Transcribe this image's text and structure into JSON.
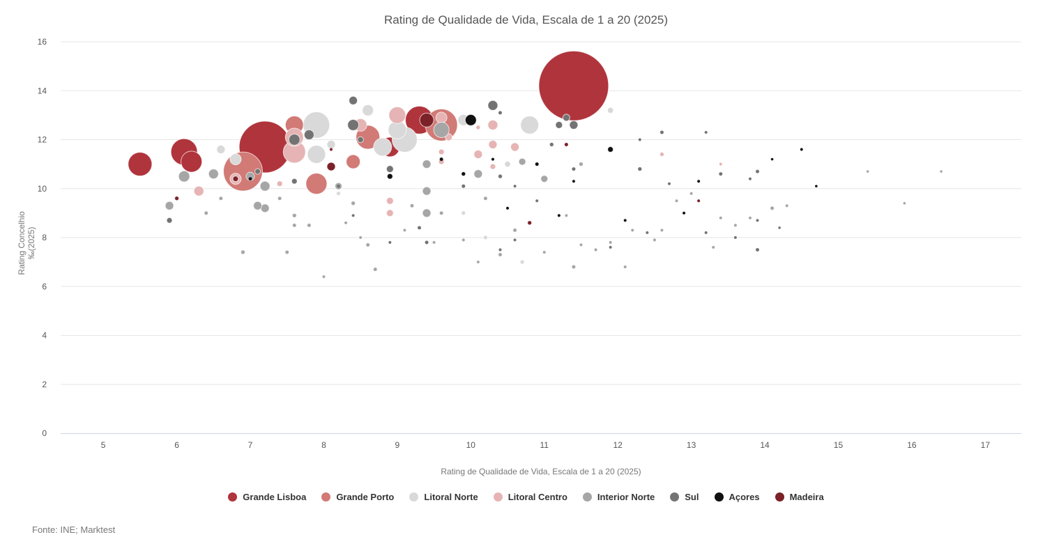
{
  "chart_data": {
    "type": "bubble",
    "title": "Rating de Qualidade de Vida, Escala de 1 a 20 (2025)",
    "xlabel": "Rating de Qualidade de Vida, Escala de 1 a 20 (2025)",
    "ylabel": "Rating Concelhio ‰(2025)",
    "xlim": [
      4.42,
      17.49
    ],
    "ylim": [
      0,
      16
    ],
    "xticks": [
      "5",
      "6",
      "7",
      "8",
      "9",
      "10",
      "11",
      "12",
      "13",
      "14",
      "15",
      "16",
      "17"
    ],
    "yticks": [
      "0",
      "2",
      "4",
      "6",
      "8",
      "10",
      "12",
      "14",
      "16"
    ],
    "grid": "horizontal",
    "legend_position": "bottom",
    "series": [
      {
        "name": "Grande Lisboa",
        "color": "#b0343c",
        "points": [
          [
            5.5,
            11.0,
            64
          ],
          [
            6.1,
            11.5,
            79
          ],
          [
            6.2,
            11.1,
            50
          ],
          [
            7.2,
            11.7,
            301
          ],
          [
            11.4,
            14.2,
            550
          ],
          [
            9.3,
            12.8,
            88
          ],
          [
            8.9,
            11.7,
            43
          ]
        ]
      },
      {
        "name": "Grande Porto",
        "color": "#d17a76",
        "points": [
          [
            6.9,
            10.7,
            172
          ],
          [
            7.6,
            12.6,
            37
          ],
          [
            7.9,
            10.2,
            50
          ],
          [
            8.6,
            12.1,
            64
          ],
          [
            8.4,
            11.1,
            22
          ],
          [
            9.6,
            12.6,
            116
          ]
        ]
      },
      {
        "name": "Litoral Norte",
        "color": "#d9d9d9",
        "points": [
          [
            7.9,
            12.6,
            79
          ],
          [
            9.1,
            12.0,
            71
          ],
          [
            9.0,
            12.4,
            37
          ],
          [
            8.8,
            11.7,
            37
          ],
          [
            10.8,
            12.6,
            37
          ],
          [
            8.6,
            13.2,
            14
          ],
          [
            7.9,
            11.4,
            37
          ],
          [
            6.8,
            11.2,
            14
          ],
          [
            6.6,
            11.6,
            8
          ],
          [
            8.2,
            9.8,
            2
          ],
          [
            9.9,
            9.0,
            2
          ],
          [
            10.5,
            11.0,
            4
          ],
          [
            11.9,
            13.2,
            4
          ],
          [
            10.2,
            8.0,
            2
          ],
          [
            10.7,
            7.0,
            2
          ],
          [
            9.9,
            12.8,
            14
          ],
          [
            7.2,
            10.1,
            8
          ],
          [
            8.1,
            11.8,
            8
          ]
        ]
      },
      {
        "name": "Litoral Centro",
        "color": "#e6b4b4",
        "points": [
          [
            7.6,
            11.5,
            56
          ],
          [
            7.6,
            12.1,
            37
          ],
          [
            9.0,
            13.0,
            32
          ],
          [
            8.5,
            12.6,
            18
          ],
          [
            6.3,
            9.9,
            11
          ],
          [
            6.8,
            10.4,
            14
          ],
          [
            10.3,
            12.6,
            11
          ],
          [
            10.3,
            11.8,
            8
          ],
          [
            10.3,
            10.9,
            3.5
          ],
          [
            10.1,
            11.4,
            8
          ],
          [
            9.6,
            12.9,
            14
          ],
          [
            9.6,
            11.1,
            3.5
          ],
          [
            9.7,
            12.1,
            5.5
          ],
          [
            8.9,
            9.5,
            5.5
          ],
          [
            8.9,
            9.0,
            5.5
          ],
          [
            9.6,
            11.5,
            3.5
          ],
          [
            10.1,
            12.5,
            2
          ],
          [
            12.6,
            11.4,
            2
          ],
          [
            13.4,
            11.0,
            1
          ],
          [
            7.4,
            10.2,
            3.5
          ],
          [
            10.6,
            11.7,
            8
          ]
        ]
      },
      {
        "name": "Interior Norte",
        "color": "#a6a6a6",
        "points": [
          [
            9.6,
            12.4,
            27
          ],
          [
            6.1,
            10.5,
            14
          ],
          [
            6.5,
            10.6,
            11
          ],
          [
            5.9,
            9.3,
            8
          ],
          [
            7.2,
            10.1,
            11
          ],
          [
            7.2,
            9.2,
            8
          ],
          [
            7.1,
            9.3,
            8
          ],
          [
            7.0,
            10.5,
            8
          ],
          [
            9.4,
            11.0,
            8
          ],
          [
            9.4,
            9.9,
            8
          ],
          [
            9.4,
            9.0,
            8
          ],
          [
            10.1,
            10.6,
            8
          ],
          [
            11.0,
            10.4,
            5.5
          ],
          [
            8.2,
            10.1,
            5.5
          ],
          [
            8.5,
            8.0,
            1
          ],
          [
            8.6,
            7.7,
            1.5
          ],
          [
            8.7,
            6.7,
            1.5
          ],
          [
            9.1,
            8.3,
            1
          ],
          [
            9.5,
            7.8,
            1
          ],
          [
            9.9,
            7.9,
            1
          ],
          [
            10.1,
            7.0,
            1
          ],
          [
            10.4,
            7.3,
            1.5
          ],
          [
            10.6,
            8.3,
            1.5
          ],
          [
            11.0,
            7.4,
            1
          ],
          [
            11.4,
            6.8,
            1.5
          ],
          [
            11.5,
            7.7,
            1
          ],
          [
            11.7,
            7.5,
            1
          ],
          [
            11.9,
            7.8,
            1
          ],
          [
            12.1,
            6.8,
            1
          ],
          [
            12.5,
            7.9,
            1
          ],
          [
            12.2,
            8.3,
            1
          ],
          [
            12.8,
            9.5,
            1
          ],
          [
            13.4,
            8.8,
            1
          ],
          [
            13.6,
            8.5,
            1
          ],
          [
            13.8,
            8.8,
            1
          ],
          [
            14.1,
            9.2,
            1.5
          ],
          [
            14.3,
            9.3,
            1
          ],
          [
            15.4,
            10.7,
            0.8
          ],
          [
            15.9,
            9.4,
            0.8
          ],
          [
            16.4,
            10.7,
            0.8
          ],
          [
            7.5,
            7.4,
            1.5
          ],
          [
            6.9,
            7.4,
            2
          ],
          [
            8.0,
            6.4,
            1
          ],
          [
            9.2,
            9.3,
            1.5
          ],
          [
            8.4,
            9.4,
            2
          ],
          [
            8.3,
            8.6,
            1
          ],
          [
            9.6,
            9.0,
            1.5
          ],
          [
            10.2,
            9.6,
            1.5
          ],
          [
            7.6,
            8.9,
            2
          ],
          [
            7.6,
            8.5,
            1.5
          ],
          [
            7.8,
            8.5,
            1.5
          ],
          [
            11.3,
            8.9,
            1
          ],
          [
            12.6,
            8.3,
            1
          ],
          [
            13.0,
            9.8,
            1
          ],
          [
            13.3,
            7.6,
            1
          ],
          [
            6.4,
            9.0,
            1.5
          ],
          [
            6.6,
            9.6,
            1.5
          ],
          [
            7.4,
            9.6,
            1.5
          ],
          [
            10.7,
            11.1,
            5.5
          ],
          [
            11.5,
            11.0,
            2
          ]
        ]
      },
      {
        "name": "Sul",
        "color": "#737373",
        "points": [
          [
            8.4,
            13.6,
            8
          ],
          [
            8.4,
            12.6,
            14
          ],
          [
            7.6,
            12.0,
            14
          ],
          [
            7.8,
            12.2,
            11
          ],
          [
            10.3,
            13.4,
            11
          ],
          [
            11.4,
            12.6,
            8
          ],
          [
            11.2,
            12.6,
            5.5
          ],
          [
            8.9,
            10.8,
            5.5
          ],
          [
            5.9,
            8.7,
            3.5
          ],
          [
            7.1,
            10.7,
            3.5
          ],
          [
            7.6,
            10.3,
            3.5
          ],
          [
            8.5,
            12.0,
            4
          ],
          [
            8.9,
            7.8,
            1
          ],
          [
            9.4,
            7.8,
            1.5
          ],
          [
            10.4,
            7.5,
            1
          ],
          [
            10.6,
            7.9,
            1
          ],
          [
            11.9,
            7.6,
            1
          ],
          [
            12.4,
            8.2,
            1
          ],
          [
            13.2,
            8.2,
            1
          ],
          [
            13.6,
            8.0,
            1
          ],
          [
            13.9,
            7.5,
            1.5
          ],
          [
            13.9,
            8.7,
            1
          ],
          [
            13.4,
            10.6,
            1.5
          ],
          [
            12.3,
            10.8,
            2
          ],
          [
            12.6,
            12.3,
            1.5
          ],
          [
            13.2,
            12.3,
            1
          ],
          [
            12.3,
            12.0,
            1
          ],
          [
            13.9,
            10.7,
            1.5
          ],
          [
            12.7,
            10.2,
            1
          ],
          [
            11.4,
            10.8,
            1.5
          ],
          [
            11.1,
            11.8,
            2
          ],
          [
            10.4,
            10.5,
            2
          ],
          [
            10.9,
            9.5,
            1
          ],
          [
            10.6,
            10.1,
            1
          ],
          [
            9.9,
            10.1,
            1.5
          ],
          [
            8.2,
            10.1,
            1.5
          ],
          [
            8.4,
            8.9,
            1
          ],
          [
            10.4,
            13.1,
            1.5
          ],
          [
            9.3,
            8.4,
            1.5
          ],
          [
            6.8,
            10.4,
            3.5
          ],
          [
            14.2,
            8.4,
            0.8
          ],
          [
            13.8,
            10.4,
            1
          ],
          [
            11.3,
            12.9,
            5.5
          ]
        ]
      },
      {
        "name": "Açores",
        "color": "#111111",
        "points": [
          [
            10.0,
            12.8,
            14
          ],
          [
            8.9,
            10.5,
            3.5
          ],
          [
            11.9,
            11.6,
            3.5
          ],
          [
            9.6,
            11.2,
            1.5
          ],
          [
            9.9,
            10.6,
            2
          ],
          [
            10.9,
            11.0,
            1.5
          ],
          [
            14.5,
            11.6,
            1
          ],
          [
            14.7,
            10.1,
            0.8
          ],
          [
            14.1,
            11.2,
            0.8
          ],
          [
            13.1,
            10.3,
            1
          ],
          [
            12.9,
            9.0,
            1
          ],
          [
            12.1,
            8.7,
            1
          ],
          [
            11.2,
            8.9,
            1
          ],
          [
            11.4,
            10.3,
            1
          ],
          [
            10.5,
            9.2,
            1
          ],
          [
            10.3,
            11.2,
            1
          ],
          [
            7.0,
            10.4,
            1.5
          ]
        ]
      },
      {
        "name": "Madeira",
        "color": "#7b2128",
        "points": [
          [
            9.4,
            12.8,
            22
          ],
          [
            8.1,
            10.9,
            8
          ],
          [
            6.0,
            9.6,
            2
          ],
          [
            10.8,
            8.6,
            2
          ],
          [
            11.3,
            11.8,
            1.5
          ],
          [
            13.1,
            9.5,
            1
          ],
          [
            8.1,
            11.6,
            1
          ],
          [
            6.8,
            10.4,
            3.5
          ]
        ]
      }
    ],
    "size_note": "bubble area proportional to z"
  },
  "legend": [
    "Grande Lisboa",
    "Grande Porto",
    "Litoral Norte",
    "Litoral Centro",
    "Interior Norte",
    "Sul",
    "Açores",
    "Madeira"
  ],
  "source": "Fonte: INE; Marktest"
}
